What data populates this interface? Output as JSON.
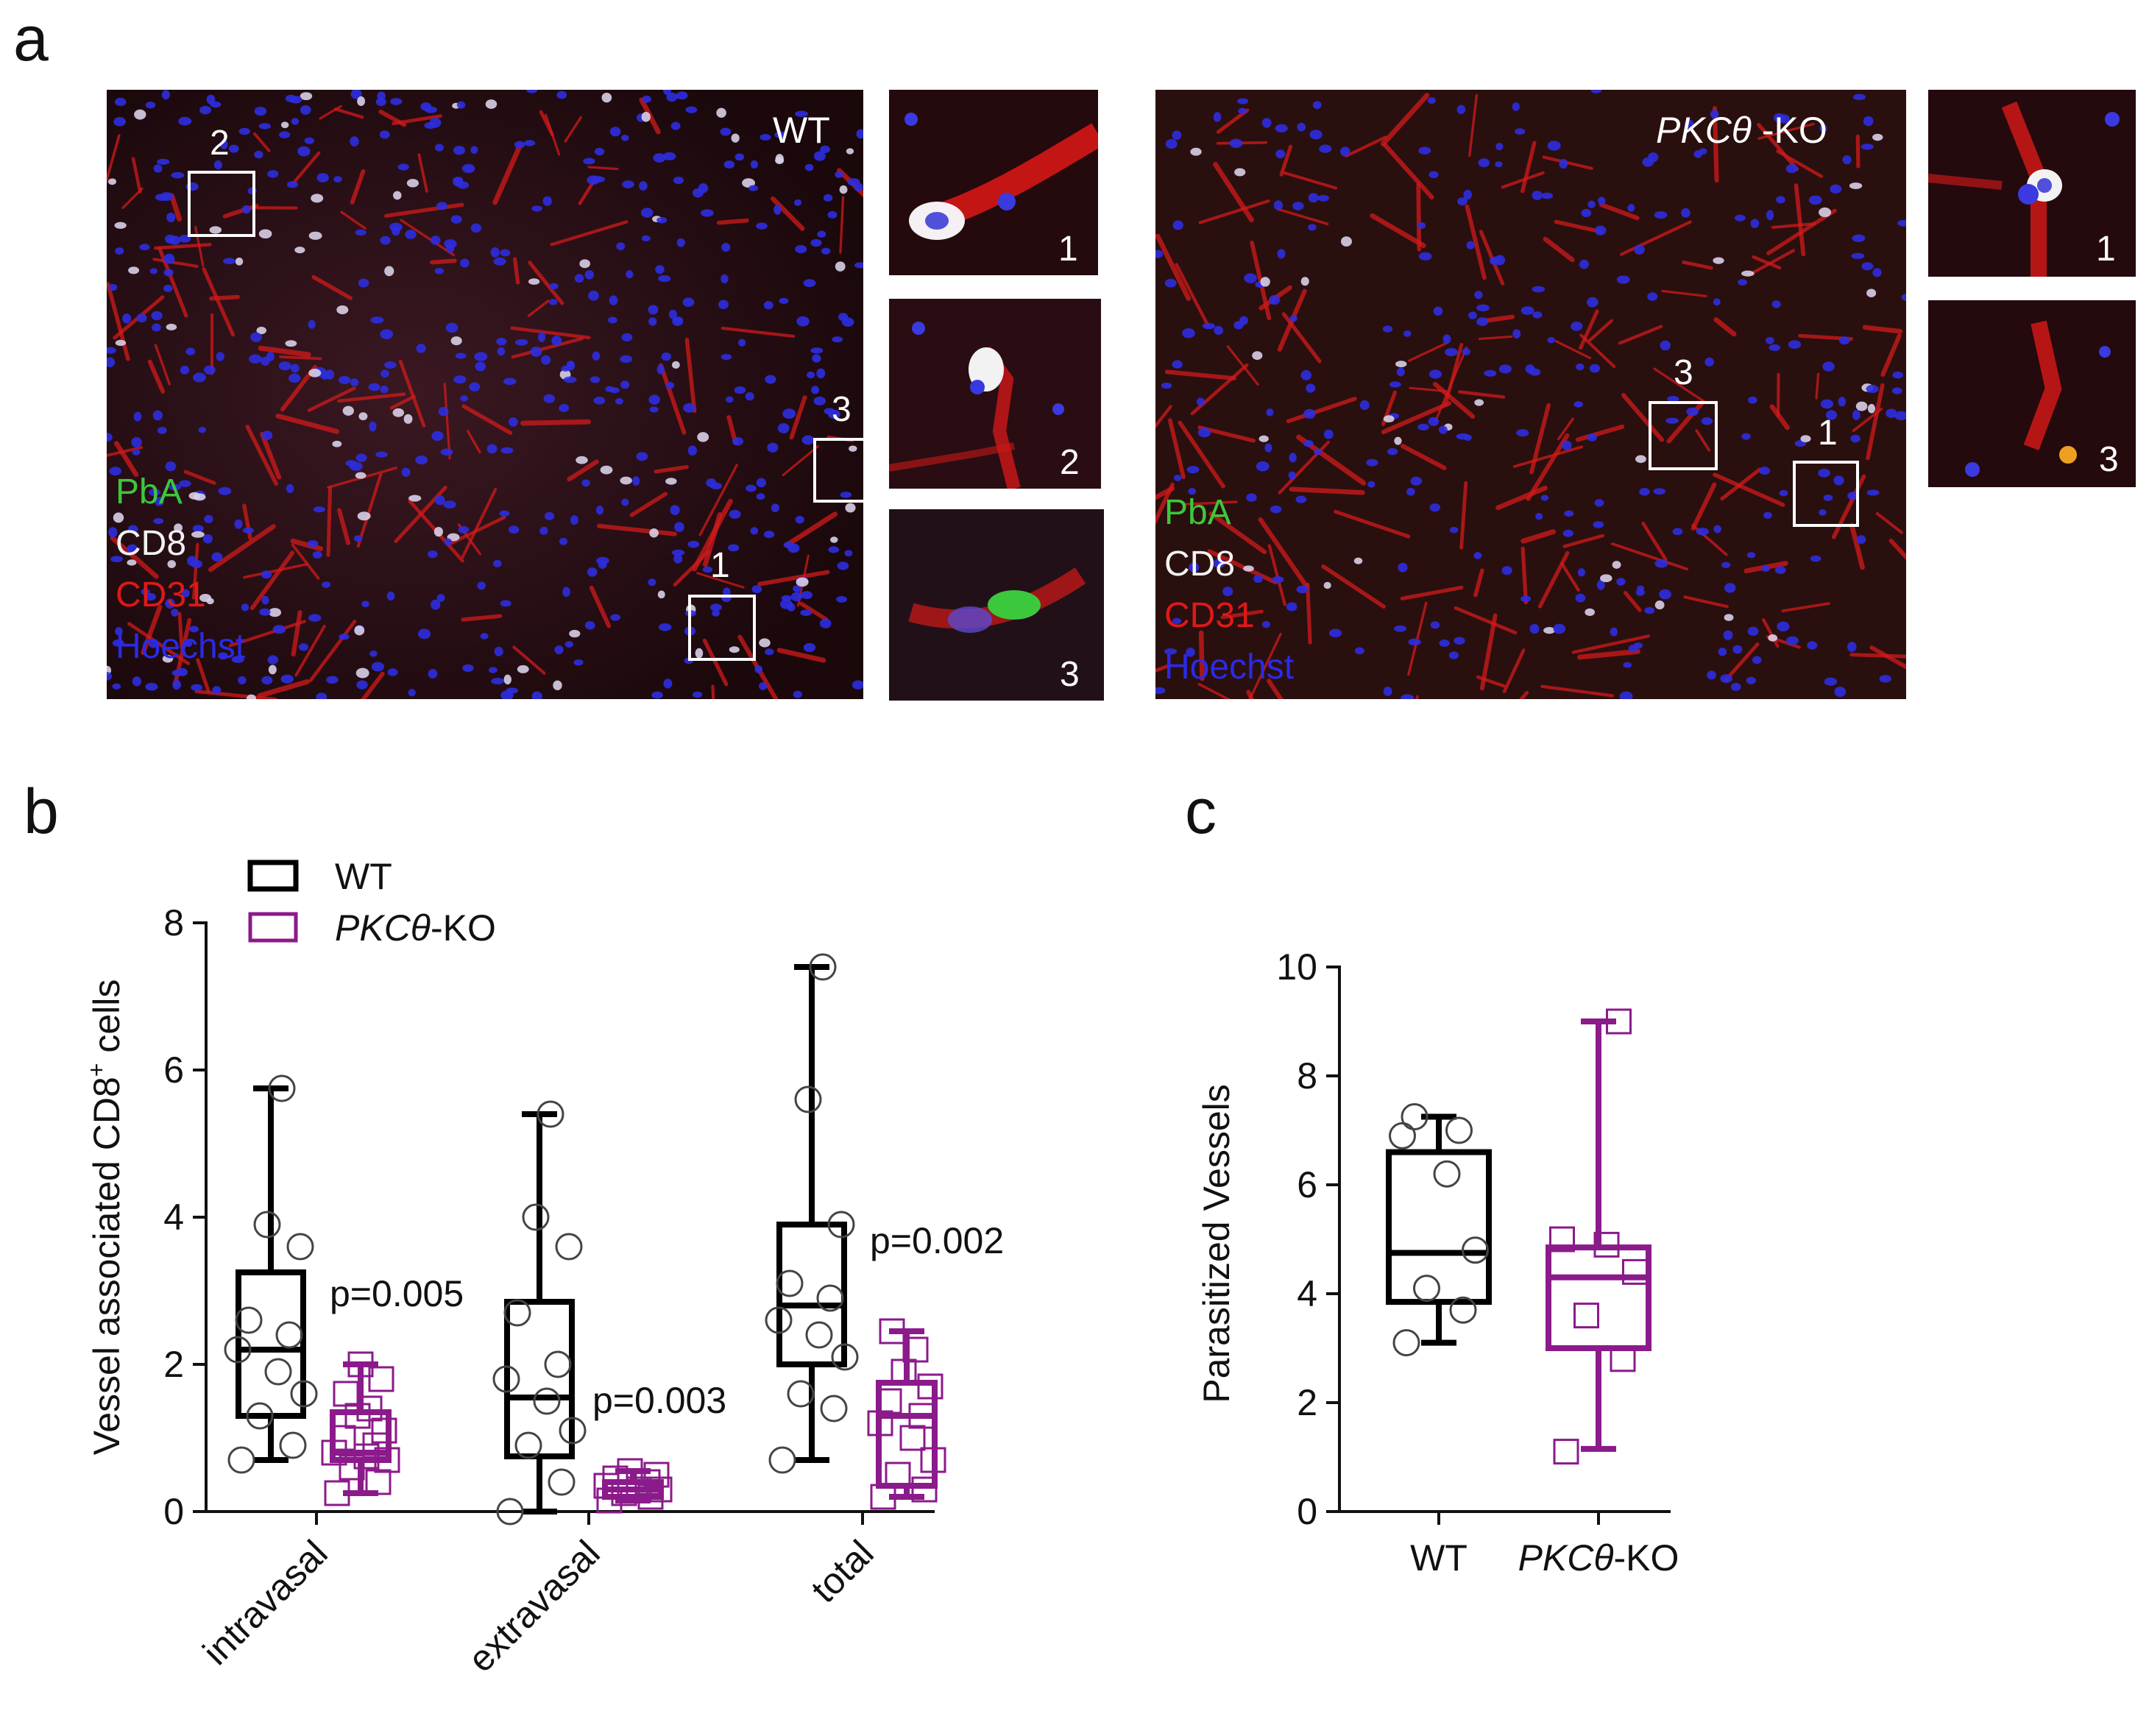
{
  "panel_a": {
    "letter": "a",
    "wt": {
      "label": "WT",
      "boxes": [
        "1",
        "2",
        "3"
      ],
      "insets": [
        "1",
        "2",
        "3"
      ],
      "legend": [
        "PbA",
        "CD8",
        "CD31",
        "Hoechst"
      ]
    },
    "ko": {
      "label_italic": "PKCθ",
      "label_suffix": " -KO",
      "boxes": [
        "1",
        "3"
      ],
      "insets": [
        "1",
        "3"
      ],
      "legend": [
        "PbA",
        "CD8",
        "CD31",
        "Hoechst"
      ]
    },
    "stain_colors": {
      "PbA": "#3cc83c",
      "CD8": "#f2f2f2",
      "CD31": "#e01818",
      "Hoechst": "#2a2ae6"
    }
  },
  "panel_b": {
    "letter": "b"
  },
  "panel_c": {
    "letter": "c"
  },
  "colors": {
    "wt": "#000000",
    "ko": "#8b1a8b"
  },
  "chart_data": [
    {
      "type": "box",
      "panel": "b",
      "ylabel": "Vessel associated CD8+ cells",
      "ylim": [
        0,
        8
      ],
      "yticks": [
        0,
        2,
        4,
        6,
        8
      ],
      "categories": [
        "intravasal",
        "extravasal",
        "total"
      ],
      "legend": [
        {
          "name": "WT",
          "italic": ""
        },
        {
          "name": "-KO",
          "italic": "PKCθ"
        }
      ],
      "legend_position": "top-left",
      "annotations": [
        "p=0.005",
        "p=0.003",
        "p=0.002"
      ],
      "series": [
        {
          "name": "WT",
          "boxes": [
            {
              "min": 0.7,
              "q1": 1.3,
              "median": 2.2,
              "q3": 3.25,
              "max": 5.75
            },
            {
              "min": 0.0,
              "q1": 0.75,
              "median": 1.55,
              "q3": 2.85,
              "max": 5.4
            },
            {
              "min": 0.7,
              "q1": 2.0,
              "median": 2.8,
              "q3": 3.9,
              "max": 7.4
            }
          ],
          "points": [
            [
              0.7,
              0.9,
              1.3,
              1.6,
              1.9,
              2.2,
              2.4,
              2.6,
              3.6,
              3.9,
              5.75
            ],
            [
              0.0,
              0.4,
              0.9,
              1.1,
              1.5,
              1.8,
              2.0,
              2.7,
              3.6,
              4.0,
              5.4
            ],
            [
              0.7,
              1.4,
              1.6,
              2.1,
              2.4,
              2.6,
              2.9,
              3.1,
              3.9,
              5.6,
              7.4
            ]
          ]
        },
        {
          "name": "PKCθ-KO",
          "boxes": [
            {
              "min": 0.25,
              "q1": 0.7,
              "median": 0.8,
              "q3": 1.35,
              "max": 2.0
            },
            {
              "min": 0.15,
              "q1": 0.2,
              "median": 0.3,
              "q3": 0.4,
              "max": 0.55
            },
            {
              "min": 0.2,
              "q1": 0.35,
              "median": 1.3,
              "q3": 1.75,
              "max": 2.45
            }
          ],
          "points": [
            [
              0.25,
              0.4,
              0.6,
              0.7,
              0.75,
              0.8,
              0.9,
              1.0,
              1.1,
              1.3,
              1.4,
              1.6,
              1.8,
              2.0
            ],
            [
              0.15,
              0.2,
              0.25,
              0.3,
              0.3,
              0.35,
              0.4,
              0.45,
              0.5,
              0.55
            ],
            [
              0.2,
              0.3,
              0.5,
              0.7,
              1.0,
              1.2,
              1.3,
              1.5,
              1.7,
              1.9,
              2.2,
              2.45
            ]
          ]
        }
      ]
    },
    {
      "type": "box",
      "panel": "c",
      "ylabel": "Parasitized Vessels",
      "ylim": [
        0,
        10
      ],
      "yticks": [
        0,
        2,
        4,
        6,
        8,
        10
      ],
      "categories": [
        "WT",
        "PKCθ-KO"
      ],
      "category_labels": [
        {
          "italic": "",
          "text": "WT"
        },
        {
          "italic": "PKCθ",
          "text": "-KO"
        }
      ],
      "series": [
        {
          "name": "WT",
          "boxes": [
            {
              "min": 3.1,
              "q1": 3.85,
              "median": 4.75,
              "q3": 6.6,
              "max": 7.25
            }
          ],
          "points": [
            [
              3.1,
              3.7,
              4.1,
              4.8,
              6.2,
              6.9,
              7.0,
              7.25
            ]
          ]
        },
        {
          "name": "PKCθ-KO",
          "boxes": [
            {
              "min": 1.15,
              "q1": 3.0,
              "median": 4.3,
              "q3": 4.85,
              "max": 9.0
            }
          ],
          "points": [
            [
              1.1,
              2.8,
              3.6,
              4.4,
              4.9,
              5.0,
              9.0
            ]
          ]
        }
      ]
    }
  ]
}
